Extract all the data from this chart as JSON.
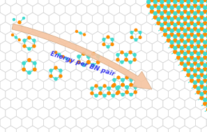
{
  "background_color": "#ffffff",
  "hex_line_color": "#d8d8d8",
  "B_color": "#FF8C00",
  "N_color": "#3DDBD0",
  "bond_color": "#3DDBD0",
  "arrow_color": "#F5C4A0",
  "arrow_edge_color": "#D4A882",
  "text_color": "#3333EE",
  "text": "Energy per BN pair",
  "text_fontsize": 6.5,
  "fig_width": 2.97,
  "fig_height": 1.89,
  "dpi": 100
}
